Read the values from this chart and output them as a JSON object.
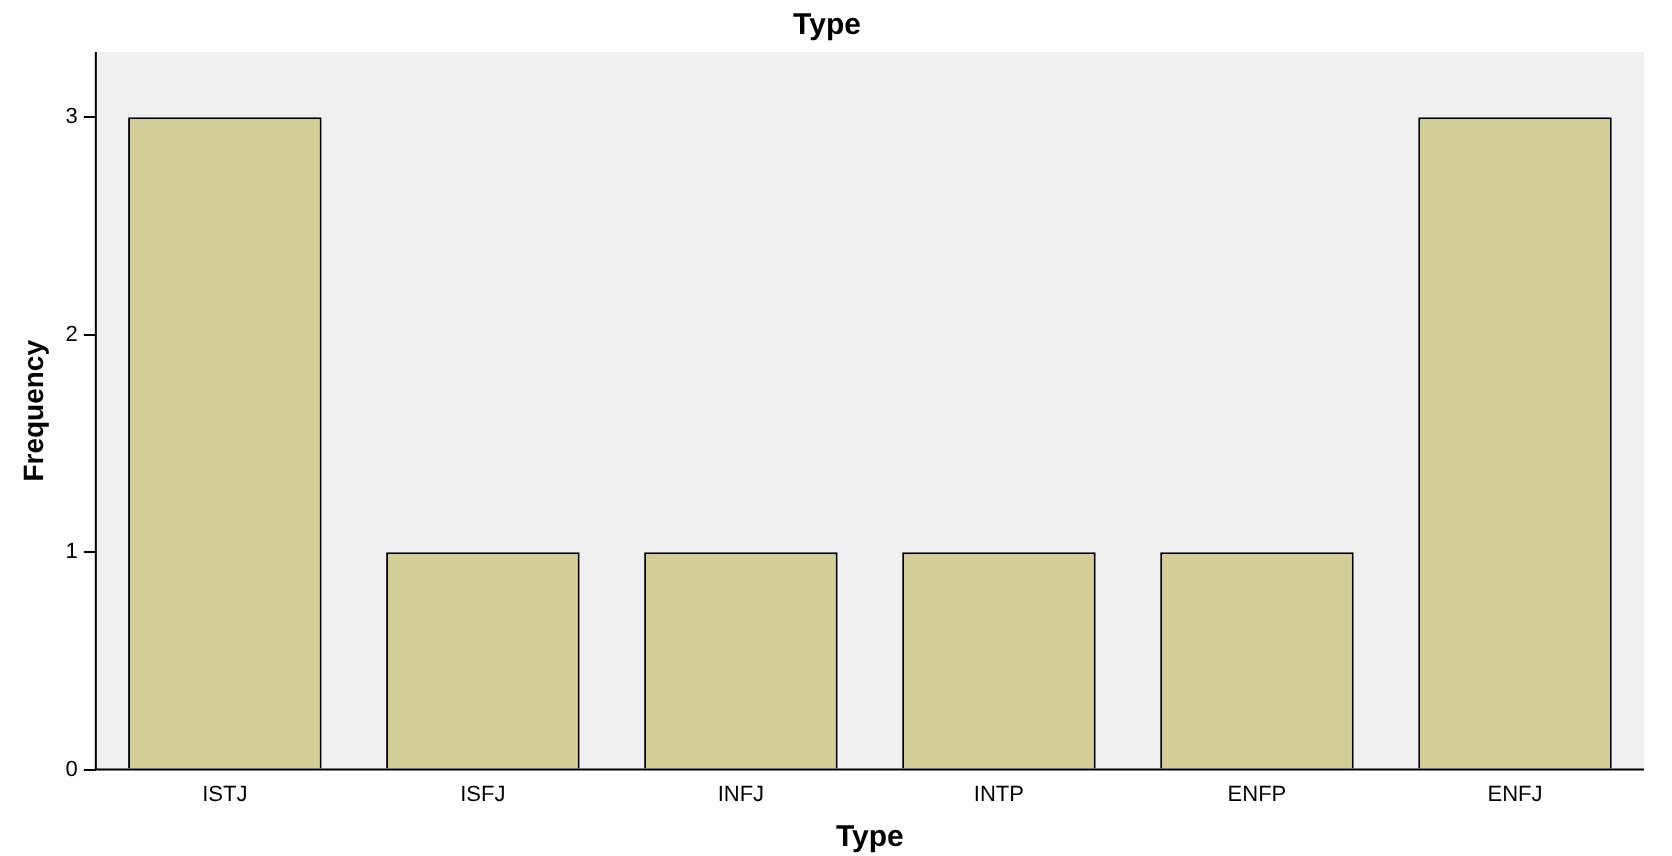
{
  "chart_data": {
    "type": "bar",
    "title": "Type",
    "xlabel": "Type",
    "ylabel": "Frequency",
    "categories": [
      "ISTJ",
      "ISFJ",
      "INFJ",
      "INTP",
      "ENFP",
      "ENFJ"
    ],
    "values": [
      3,
      1,
      1,
      1,
      1,
      3
    ],
    "color": "#d3ce97",
    "ylim": [
      0,
      3.3
    ],
    "yticks": [
      0,
      1,
      2,
      3
    ],
    "grid": false,
    "legend": false
  }
}
